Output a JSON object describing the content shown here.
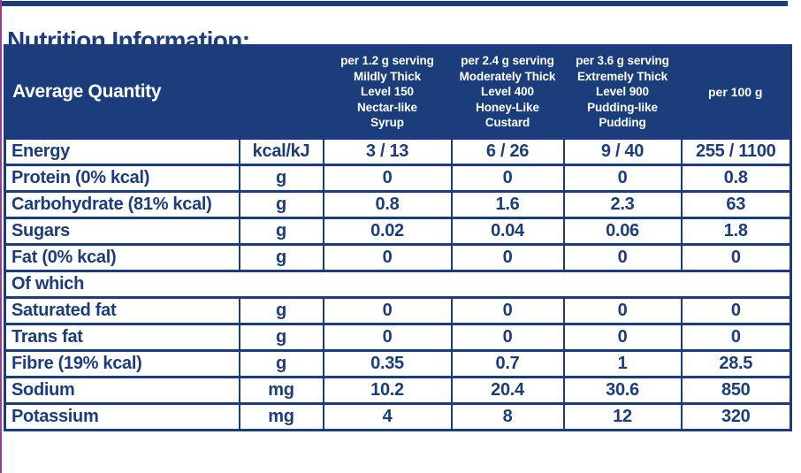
{
  "title": "Nutrition Information:",
  "colors": {
    "navy": "#1B3D7C",
    "accent_purple": "#993D93",
    "header_text": "#FFFFFF",
    "background": "#FFFFFF"
  },
  "table": {
    "header": {
      "row_label": "Average Quantity",
      "unit_label": "",
      "serving_columns": [
        {
          "lines": [
            "per 1.2 g serving",
            "Mildly Thick",
            "Level 150",
            "Nectar-like",
            "Syrup"
          ]
        },
        {
          "lines": [
            "per 2.4 g serving",
            "Moderately Thick",
            "Level 400",
            "Honey-Like",
            "Custard"
          ]
        },
        {
          "lines": [
            "per 3.6 g serving",
            "Extremely Thick",
            "Level 900",
            "Pudding-like",
            "Pudding"
          ]
        }
      ],
      "per_100g_label": "per 100 g"
    },
    "rows": [
      {
        "type": "data",
        "label": "Energy",
        "unit": "kcal/kJ",
        "values": [
          "3 / 13",
          "6 / 26",
          "9 / 40",
          "255 / 1100"
        ]
      },
      {
        "type": "data",
        "label": "Protein (0% kcal)",
        "unit": "g",
        "values": [
          "0",
          "0",
          "0",
          "0.8"
        ]
      },
      {
        "type": "data",
        "label": "Carbohydrate (81% kcal)",
        "unit": "g",
        "values": [
          "0.8",
          "1.6",
          "2.3",
          "63"
        ]
      },
      {
        "type": "data",
        "label": "Sugars",
        "unit": "g",
        "values": [
          "0.02",
          "0.04",
          "0.06",
          "1.8"
        ]
      },
      {
        "type": "data",
        "label": "Fat (0% kcal)",
        "unit": "g",
        "values": [
          "0",
          "0",
          "0",
          "0"
        ]
      },
      {
        "type": "section",
        "label": "Of which"
      },
      {
        "type": "data",
        "label": "Saturated fat",
        "unit": "g",
        "values": [
          "0",
          "0",
          "0",
          "0"
        ]
      },
      {
        "type": "data",
        "label": "Trans fat",
        "unit": "g",
        "values": [
          "0",
          "0",
          "0",
          "0"
        ]
      },
      {
        "type": "data",
        "label": "Fibre (19% kcal)",
        "unit": "g",
        "values": [
          "0.35",
          "0.7",
          "1",
          "28.5"
        ]
      },
      {
        "type": "data",
        "label": "Sodium",
        "unit": "mg",
        "values": [
          "10.2",
          "20.4",
          "30.6",
          "850"
        ]
      },
      {
        "type": "data",
        "label": "Potassium",
        "unit": "mg",
        "values": [
          "4",
          "8",
          "12",
          "320"
        ]
      }
    ]
  }
}
